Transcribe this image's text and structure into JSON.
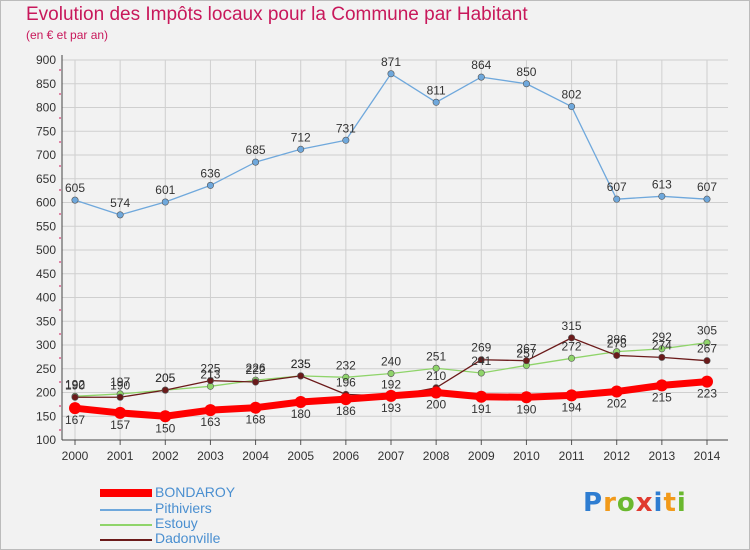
{
  "header": {
    "title": "Evolution des Impôts locaux pour la Commune par Habitant",
    "subtitle": "(en € et par an)"
  },
  "logo": {
    "text": "Proxiti",
    "colors": [
      "#2e7dd1",
      "#f29a1a",
      "#6ab82e",
      "#e03a2f",
      "#2e7dd1",
      "#f29a1a",
      "#6ab82e"
    ]
  },
  "chart_data": {
    "type": "line",
    "x": [
      "2000",
      "2001",
      "2002",
      "2003",
      "2004",
      "2005",
      "2006",
      "2007",
      "2008",
      "2009",
      "2010",
      "2011",
      "2012",
      "2013",
      "2014"
    ],
    "ylim": [
      100,
      900
    ],
    "yticks": [
      100,
      150,
      200,
      250,
      300,
      350,
      400,
      450,
      500,
      550,
      600,
      650,
      700,
      750,
      800,
      850,
      900
    ],
    "grid": true,
    "legend_position": "bottom-left",
    "series": [
      {
        "name": "BONDAROY",
        "color": "#ff0000",
        "values": [
          167,
          157,
          150,
          163,
          168,
          180,
          186,
          193,
          200,
          191,
          190,
          194,
          202,
          215,
          223
        ]
      },
      {
        "name": "Pithiviers",
        "color": "#6fa8dc",
        "values": [
          605,
          574,
          601,
          636,
          685,
          712,
          731,
          871,
          811,
          864,
          850,
          802,
          607,
          613,
          607
        ]
      },
      {
        "name": "Estouy",
        "color": "#8fd46a",
        "values": [
          192,
          197,
          205,
          213,
          226,
          235,
          232,
          240,
          251,
          241,
          257,
          272,
          286,
          292,
          305
        ]
      },
      {
        "name": "Dadonville",
        "color": "#6b1a1a",
        "values": [
          190,
          190,
          205,
          225,
          222,
          235,
          196,
          192,
          210,
          269,
          267,
          315,
          278,
          274,
          267
        ]
      }
    ],
    "point_labels": [
      {
        "series": "Pithiviers",
        "values": [
          "605",
          "574",
          "601",
          "636",
          "685",
          "712",
          "731",
          "871",
          "811",
          "864",
          "850",
          "802",
          "607",
          "613",
          "607"
        ]
      },
      {
        "series": "Estouy",
        "values": [
          "192",
          "197",
          "205",
          "213",
          "226",
          "235",
          "232",
          "240",
          "251",
          "241",
          "257",
          "272",
          "286",
          "292",
          "305"
        ]
      },
      {
        "series": "Dadonville",
        "values": [
          "190",
          "190",
          "205",
          "225",
          "222",
          "235",
          "196",
          "192",
          "210",
          "269",
          "267",
          "315",
          "278",
          "274",
          "267"
        ]
      },
      {
        "series": "BONDAROY",
        "values": [
          "167",
          "157",
          "150",
          "163",
          "168",
          "180",
          "186",
          "193",
          "200",
          "191",
          "190",
          "194",
          "202",
          "215",
          "223"
        ]
      }
    ]
  }
}
